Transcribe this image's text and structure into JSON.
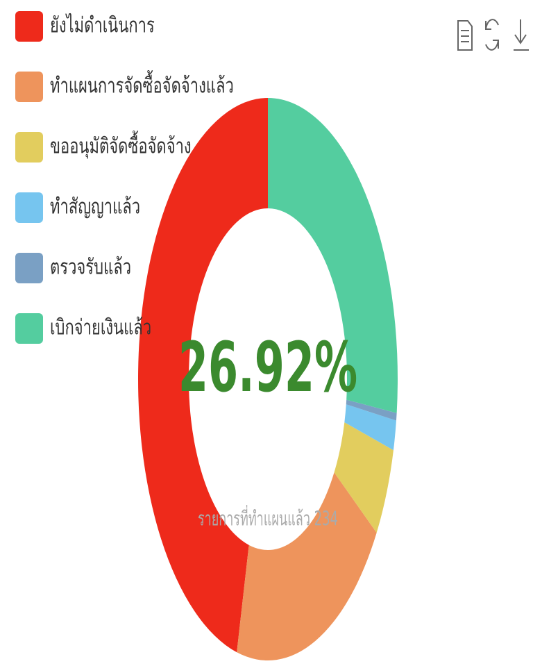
{
  "chart_data": {
    "type": "donut",
    "center_label": "26.92%",
    "subtitle": "รายการที่ทำแผนแล้ว 234",
    "categories": [
      "ยังไม่ดำเนินการ",
      "ทำแผนการจัดซื้อจัดจ้างแล้ว",
      "ขออนุมัติจัดซื้อจัดจ้าง",
      "ทำสัญญาแล้ว",
      "ตรวจรับแล้ว",
      "เบิกจ่ายเงินแล้ว"
    ],
    "values": [
      46.15,
      19.66,
      5.13,
      1.71,
      0.43,
      26.92
    ],
    "colors": [
      "#ee2a1b",
      "#ee945c",
      "#e2cd5e",
      "#76c5ef",
      "#7aa0c4",
      "#54cd9f"
    ],
    "legend": "top-left"
  }
}
